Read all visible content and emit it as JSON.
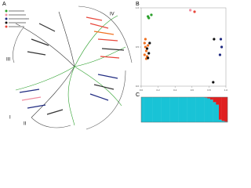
{
  "figure": {
    "panels": [
      "A",
      "B",
      "C"
    ],
    "clades": [
      "I",
      "II",
      "III",
      "IV"
    ]
  },
  "chart_data": [
    {
      "type": "scatter",
      "xlim": [
        0,
        1
      ],
      "ylim": [
        0,
        1
      ],
      "xticks": [
        {
          "value": 0,
          "label": "0.0"
        },
        0.2,
        0.4,
        0.6,
        0.8,
        {
          "value": 1,
          "label": "1.0"
        }
      ],
      "yticks": [
        {
          "value": 0,
          "label": "0.0"
        },
        0.5,
        {
          "value": 1,
          "label": "1.0"
        }
      ],
      "series": [
        {
          "color": "#2ca02c",
          "x": [
            0.08,
            0.12,
            0.09
          ],
          "values": [
            0.89,
            0.91,
            0.87
          ]
        },
        {
          "color": "#f08ca0",
          "x": [
            0.58
          ],
          "values": [
            0.97
          ]
        },
        {
          "color": "#e8463a",
          "x": [
            0.63
          ],
          "values": [
            0.95
          ]
        },
        {
          "color": "#f07020",
          "x": [
            0.04,
            0.05,
            0.06,
            0.04,
            0.07,
            0.05,
            0.08,
            0.06
          ],
          "values": [
            0.55,
            0.5,
            0.45,
            0.4,
            0.38,
            0.6,
            0.52,
            0.35
          ]
        },
        {
          "color": "#111111",
          "x": [
            0.07,
            0.09,
            0.1,
            0.08,
            0.86,
            0.85
          ],
          "values": [
            0.48,
            0.42,
            0.55,
            0.36,
            0.6,
            0.05
          ]
        },
        {
          "color": "#1f2a80",
          "x": [
            0.94,
            0.95,
            0.93
          ],
          "values": [
            0.6,
            0.5,
            0.4
          ]
        }
      ]
    },
    {
      "type": "bar",
      "ylim": [
        0,
        1
      ],
      "series": [
        {
          "color": "#19c3d6",
          "values": [
            1,
            1,
            1,
            1,
            1,
            1,
            1,
            1,
            1,
            1,
            1,
            1,
            1,
            1,
            1,
            1,
            1,
            1,
            1,
            1,
            1,
            1,
            0.98,
            0.95,
            0.9,
            0.8,
            0.7,
            0.1,
            0.05,
            0.02
          ]
        },
        {
          "color": "#e02020",
          "values": [
            0,
            0,
            0,
            0,
            0,
            0,
            0,
            0,
            0,
            0,
            0,
            0,
            0,
            0,
            0,
            0,
            0,
            0,
            0,
            0,
            0,
            0,
            0.02,
            0.05,
            0.1,
            0.2,
            0.3,
            0.9,
            0.95,
            0.98
          ]
        }
      ]
    }
  ]
}
